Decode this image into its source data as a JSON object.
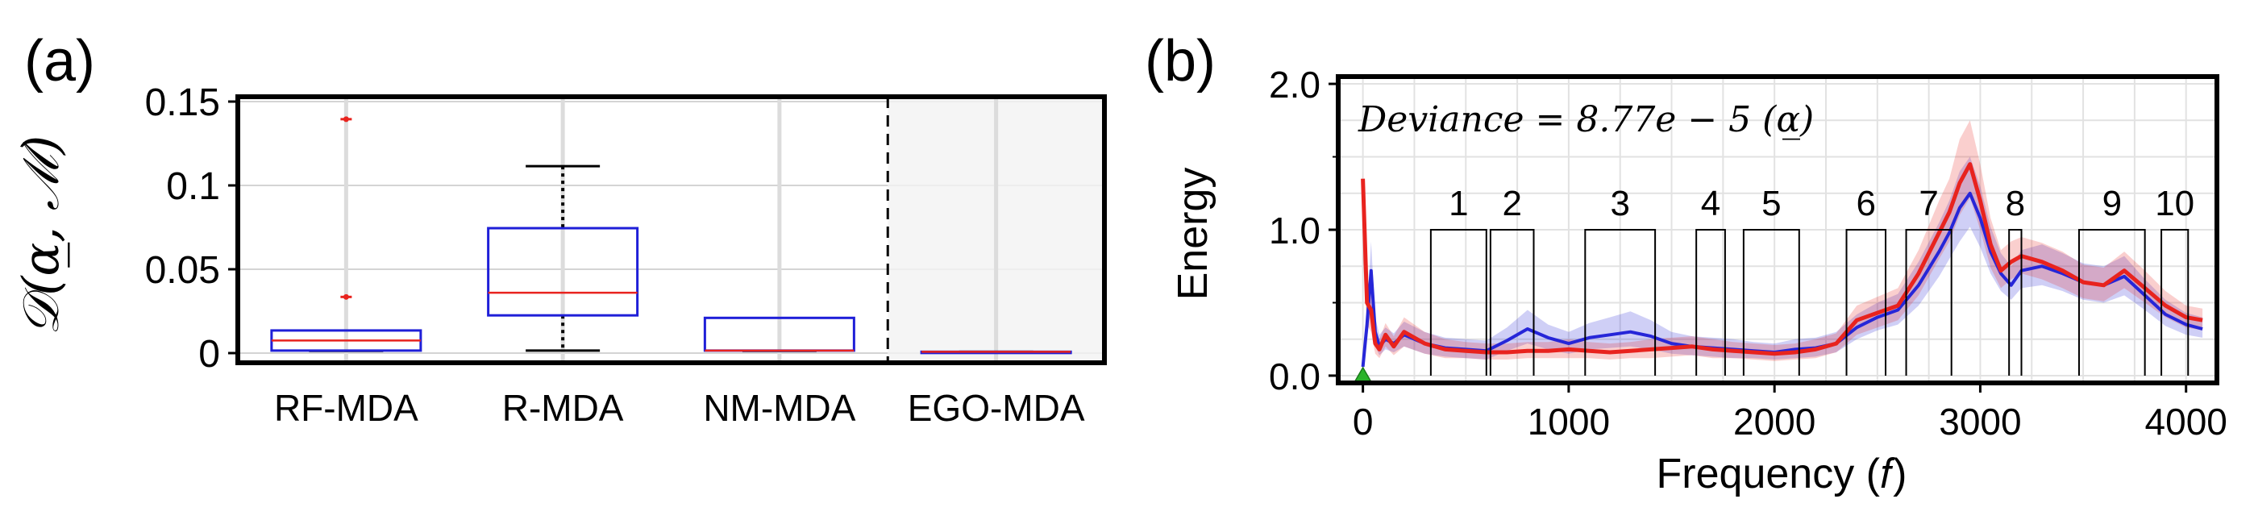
{
  "chart_data": [
    {
      "panel_label": "(a)",
      "type": "box",
      "ylabel": "𝒟(α̲, ℳ)",
      "ylim": [
        0,
        0.15
      ],
      "yticks": [
        0,
        0.05,
        0.1,
        0.15
      ],
      "ytick_labels": [
        "0",
        "0.05",
        "0.1",
        "0.15"
      ],
      "grid": true,
      "categories": [
        "RF-MDA",
        "R-MDA",
        "NM-MDA",
        "EGO-MDA"
      ],
      "boxes": [
        {
          "category": "RF-MDA",
          "whisker_low": 0.0013,
          "q1": 0.0015,
          "median": 0.0075,
          "q3": 0.0135,
          "whisker_high": 0.0135,
          "outliers": [
            0.0335,
            0.1395
          ]
        },
        {
          "category": "R-MDA",
          "whisker_low": 0.0015,
          "q1": 0.0225,
          "median": 0.036,
          "q3": 0.0745,
          "whisker_high": 0.1115,
          "outliers": []
        },
        {
          "category": "NM-MDA",
          "whisker_low": 0.0013,
          "q1": 0.0015,
          "median": 0.0015,
          "q3": 0.021,
          "whisker_high": 0.021,
          "outliers": []
        },
        {
          "category": "EGO-MDA",
          "whisker_low": 0.0008,
          "q1": 0.0008,
          "median": 0.0008,
          "q3": 0.0008,
          "whisker_high": 0.0008,
          "outliers": []
        }
      ],
      "highlighted_category": "EGO-MDA",
      "colors": {
        "box": "#1f1fd8",
        "median": "#e8231e",
        "outlier": "#e8231e"
      }
    },
    {
      "panel_label": "(b)",
      "type": "line",
      "xlabel": "Frequency (𝑓)",
      "ylabel": "Energy",
      "annotation": "Deviance = 8.77e − 5 (α̲)",
      "xlim": [
        -120,
        4150
      ],
      "ylim": [
        -0.05,
        2.05
      ],
      "xticks": [
        0,
        1000,
        2000,
        3000,
        4000
      ],
      "xtick_labels": [
        "0",
        "1000",
        "2000",
        "3000",
        "4000"
      ],
      "yticks": [
        0,
        1,
        2
      ],
      "ytick_labels": [
        "0.0",
        "1.0",
        "2.0"
      ],
      "grid": true,
      "bands": [
        {
          "label": "1",
          "start": 330,
          "end": 600
        },
        {
          "label": "2",
          "start": 620,
          "end": 830
        },
        {
          "label": "3",
          "start": 1080,
          "end": 1420
        },
        {
          "label": "4",
          "start": 1620,
          "end": 1760
        },
        {
          "label": "5",
          "start": 1850,
          "end": 2120
        },
        {
          "label": "6",
          "start": 2350,
          "end": 2540
        },
        {
          "label": "7",
          "start": 2640,
          "end": 2860
        },
        {
          "label": "8",
          "start": 3140,
          "end": 3200
        },
        {
          "label": "9",
          "start": 3480,
          "end": 3800
        },
        {
          "label": "10",
          "start": 3880,
          "end": 4010
        }
      ],
      "band_height": 1.0,
      "series": [
        {
          "color": "#2626d8",
          "x": [
            0,
            20,
            40,
            60,
            80,
            110,
            150,
            200,
            300,
            400,
            500,
            600,
            700,
            800,
            900,
            1000,
            1100,
            1200,
            1300,
            1400,
            1500,
            1600,
            1700,
            1800,
            1900,
            2000,
            2100,
            2200,
            2300,
            2400,
            2500,
            2600,
            2700,
            2800,
            2850,
            2900,
            2950,
            3000,
            3050,
            3100,
            3150,
            3200,
            3300,
            3400,
            3500,
            3600,
            3700,
            3800,
            3900,
            4000,
            4080
          ],
          "y": [
            0.06,
            0.35,
            0.72,
            0.3,
            0.2,
            0.25,
            0.22,
            0.28,
            0.22,
            0.19,
            0.18,
            0.17,
            0.24,
            0.32,
            0.26,
            0.22,
            0.26,
            0.28,
            0.3,
            0.27,
            0.22,
            0.2,
            0.19,
            0.18,
            0.17,
            0.16,
            0.18,
            0.19,
            0.22,
            0.33,
            0.4,
            0.45,
            0.62,
            0.85,
            0.98,
            1.15,
            1.25,
            1.08,
            0.85,
            0.7,
            0.62,
            0.72,
            0.75,
            0.7,
            0.64,
            0.62,
            0.68,
            0.55,
            0.42,
            0.35,
            0.32
          ],
          "band_low": [
            0.05,
            0.25,
            0.45,
            0.2,
            0.14,
            0.18,
            0.16,
            0.2,
            0.15,
            0.13,
            0.12,
            0.11,
            0.17,
            0.22,
            0.18,
            0.15,
            0.18,
            0.19,
            0.2,
            0.18,
            0.15,
            0.14,
            0.13,
            0.12,
            0.12,
            0.11,
            0.12,
            0.13,
            0.16,
            0.25,
            0.31,
            0.35,
            0.48,
            0.68,
            0.8,
            0.92,
            1.02,
            0.88,
            0.7,
            0.58,
            0.52,
            0.6,
            0.62,
            0.58,
            0.52,
            0.5,
            0.55,
            0.45,
            0.34,
            0.28,
            0.26
          ],
          "band_high": [
            0.08,
            0.45,
            0.92,
            0.4,
            0.28,
            0.33,
            0.29,
            0.37,
            0.3,
            0.26,
            0.25,
            0.24,
            0.33,
            0.45,
            0.35,
            0.3,
            0.36,
            0.4,
            0.44,
            0.38,
            0.3,
            0.27,
            0.26,
            0.25,
            0.23,
            0.22,
            0.25,
            0.26,
            0.3,
            0.42,
            0.5,
            0.56,
            0.78,
            1.05,
            1.2,
            1.4,
            1.5,
            1.3,
            1.02,
            0.84,
            0.75,
            0.86,
            0.9,
            0.84,
            0.77,
            0.75,
            0.82,
            0.66,
            0.52,
            0.43,
            0.4
          ]
        },
        {
          "color": "#e8231e",
          "x": [
            0,
            20,
            40,
            60,
            80,
            110,
            150,
            200,
            300,
            400,
            500,
            600,
            700,
            800,
            900,
            1000,
            1100,
            1200,
            1300,
            1400,
            1500,
            1600,
            1700,
            1800,
            1900,
            2000,
            2100,
            2200,
            2300,
            2400,
            2500,
            2600,
            2700,
            2800,
            2850,
            2900,
            2950,
            3000,
            3050,
            3100,
            3150,
            3200,
            3300,
            3400,
            3500,
            3600,
            3700,
            3800,
            3900,
            4000,
            4080
          ],
          "y": [
            1.35,
            0.5,
            0.45,
            0.22,
            0.18,
            0.28,
            0.2,
            0.3,
            0.22,
            0.18,
            0.17,
            0.16,
            0.16,
            0.17,
            0.17,
            0.18,
            0.17,
            0.16,
            0.17,
            0.18,
            0.19,
            0.2,
            0.18,
            0.17,
            0.16,
            0.15,
            0.16,
            0.18,
            0.22,
            0.38,
            0.43,
            0.48,
            0.7,
            0.98,
            1.12,
            1.32,
            1.45,
            1.2,
            0.9,
            0.72,
            0.78,
            0.82,
            0.78,
            0.72,
            0.64,
            0.62,
            0.72,
            0.6,
            0.48,
            0.4,
            0.38
          ],
          "band_low": [
            0.8,
            0.35,
            0.3,
            0.15,
            0.12,
            0.2,
            0.14,
            0.2,
            0.15,
            0.12,
            0.12,
            0.11,
            0.11,
            0.12,
            0.12,
            0.12,
            0.12,
            0.11,
            0.12,
            0.12,
            0.13,
            0.14,
            0.12,
            0.12,
            0.11,
            0.1,
            0.11,
            0.12,
            0.16,
            0.28,
            0.33,
            0.38,
            0.55,
            0.8,
            0.92,
            1.1,
            1.22,
            1.0,
            0.74,
            0.6,
            0.66,
            0.7,
            0.66,
            0.6,
            0.53,
            0.51,
            0.6,
            0.5,
            0.4,
            0.33,
            0.31
          ],
          "band_high": [
            1.4,
            0.65,
            0.6,
            0.3,
            0.25,
            0.36,
            0.27,
            0.4,
            0.3,
            0.25,
            0.23,
            0.22,
            0.22,
            0.23,
            0.23,
            0.25,
            0.23,
            0.22,
            0.23,
            0.25,
            0.26,
            0.27,
            0.25,
            0.23,
            0.22,
            0.21,
            0.22,
            0.25,
            0.29,
            0.48,
            0.54,
            0.6,
            0.86,
            1.2,
            1.35,
            1.62,
            1.75,
            1.45,
            1.08,
            0.86,
            0.92,
            0.95,
            0.91,
            0.85,
            0.76,
            0.74,
            0.85,
            0.72,
            0.58,
            0.48,
            0.46
          ]
        }
      ],
      "marker": {
        "shape": "triangle",
        "x": 0,
        "y": 0.0,
        "color": "#2bb32b"
      }
    }
  ]
}
